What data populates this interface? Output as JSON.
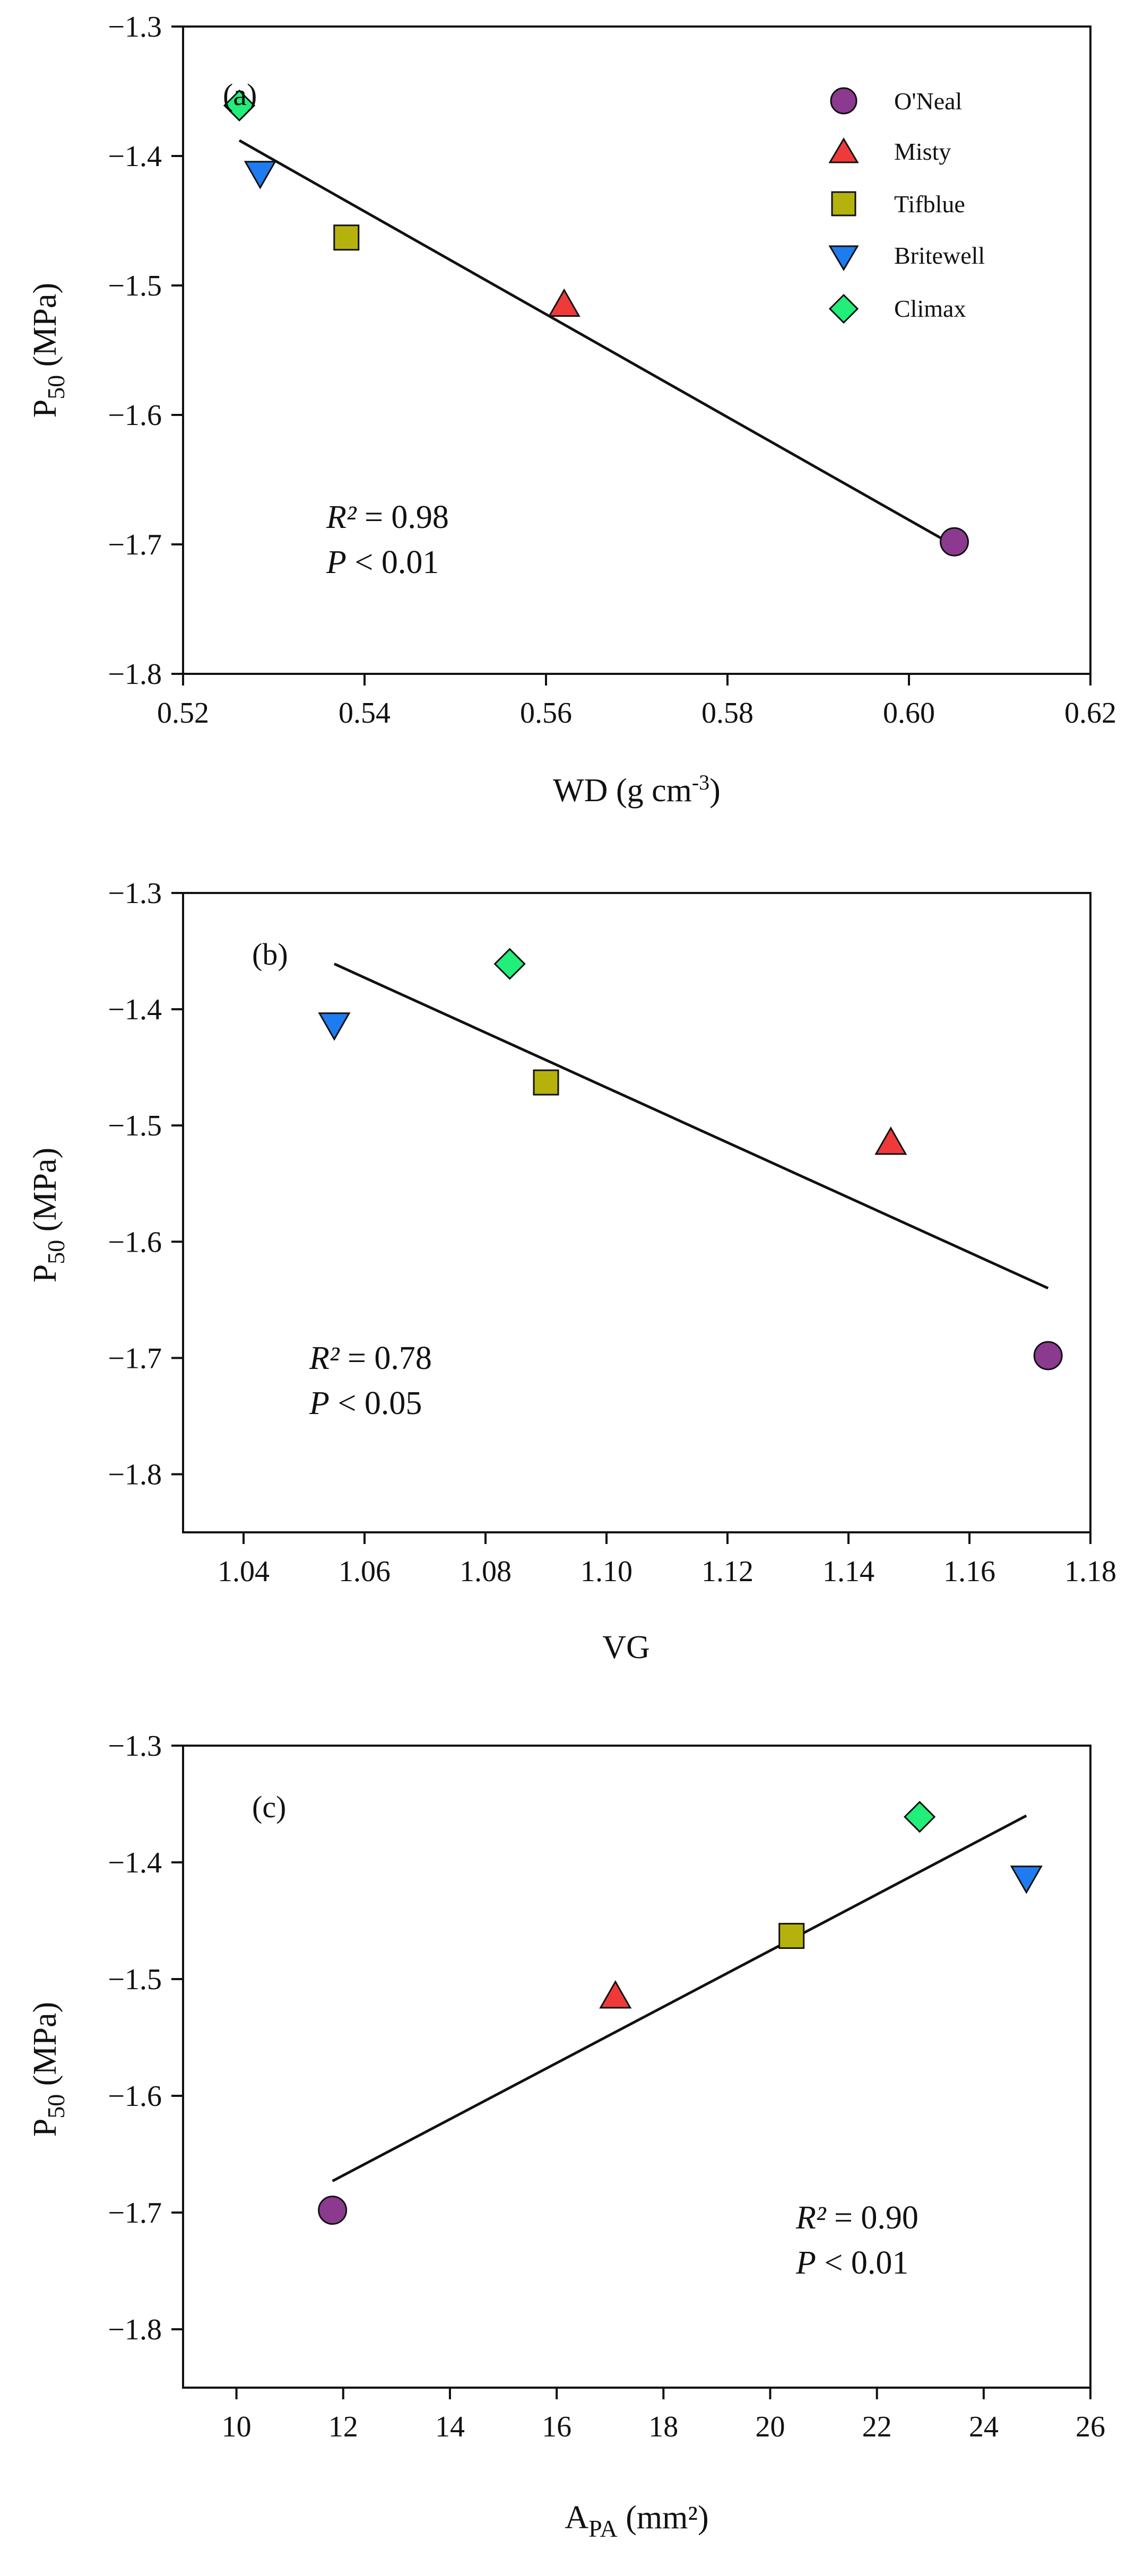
{
  "chart_data": [
    {
      "type": "scatter",
      "panel_label": "(a)",
      "xlabel": "WD (g cm-3)",
      "xlabel_main": "WD (g cm",
      "xlabel_sup": "-3",
      "xlabel_end": ")",
      "ylabel": "P50 (MPa)",
      "ylabel_main": "P",
      "ylabel_sub": "50",
      "ylabel_end": " (MPa)",
      "xlim": [
        0.52,
        0.62
      ],
      "ylim": [
        -1.8,
        -1.3
      ],
      "xticks": [
        0.52,
        0.54,
        0.56,
        0.58,
        0.6,
        0.62
      ],
      "xtick_labels": [
        "0.52",
        "0.54",
        "0.56",
        "0.58",
        "0.60",
        "0.62"
      ],
      "yticks": [
        -1.3,
        -1.4,
        -1.5,
        -1.6,
        -1.7,
        -1.8
      ],
      "ytick_labels": [
        "−1.3",
        "−1.4",
        "−1.5",
        "−1.6",
        "−1.7",
        "−1.8"
      ],
      "points": [
        {
          "cultivar": "O'Neal",
          "x": 0.605,
          "y": -1.698
        },
        {
          "cultivar": "Misty",
          "x": 0.562,
          "y": -1.515
        },
        {
          "cultivar": "Tifblue",
          "x": 0.538,
          "y": -1.463
        },
        {
          "cultivar": "Britewell",
          "x": 0.5285,
          "y": -1.413
        },
        {
          "cultivar": "Climax",
          "x": 0.5262,
          "y": -1.361
        }
      ],
      "fit_line": {
        "x": [
          0.5262,
          0.605
        ],
        "y": [
          -1.388,
          -1.701
        ]
      },
      "r2_label": "R²",
      "r2_value": " = 0.98",
      "p_label": "P",
      "p_value": " < 0.01",
      "stat_position": "bottom-left",
      "legend_position": "top-right"
    },
    {
      "type": "scatter",
      "panel_label": "(b)",
      "xlabel": "VG",
      "ylabel": "P50 (MPa)",
      "ylabel_main": "P",
      "ylabel_sub": "50",
      "ylabel_end": " (MPa)",
      "xlim": [
        1.03,
        1.18
      ],
      "ylim": [
        -1.85,
        -1.3
      ],
      "xticks": [
        1.04,
        1.06,
        1.08,
        1.1,
        1.12,
        1.14,
        1.16,
        1.18
      ],
      "xtick_labels": [
        "1.04",
        "1.06",
        "1.08",
        "1.10",
        "1.12",
        "1.14",
        "1.16",
        "1.18"
      ],
      "yticks": [
        -1.3,
        -1.4,
        -1.5,
        -1.6,
        -1.7,
        -1.8
      ],
      "ytick_labels": [
        "−1.3",
        "−1.4",
        "−1.5",
        "−1.6",
        "−1.7",
        "−1.8"
      ],
      "points": [
        {
          "cultivar": "O'Neal",
          "x": 1.173,
          "y": -1.698
        },
        {
          "cultivar": "Misty",
          "x": 1.147,
          "y": -1.515
        },
        {
          "cultivar": "Tifblue",
          "x": 1.09,
          "y": -1.463
        },
        {
          "cultivar": "Britewell",
          "x": 1.055,
          "y": -1.413
        },
        {
          "cultivar": "Climax",
          "x": 1.084,
          "y": -1.361
        }
      ],
      "fit_line": {
        "x": [
          1.055,
          1.173
        ],
        "y": [
          -1.361,
          -1.64
        ]
      },
      "r2_label": "R²",
      "r2_value": " = 0.78",
      "p_label": "P",
      "p_value": " < 0.05",
      "stat_position": "bottom-left"
    },
    {
      "type": "scatter",
      "panel_label": "(c)",
      "xlabel": "APA (mm²)",
      "xlabel_main": "A",
      "xlabel_sub": "PA",
      "xlabel_end": " (mm²)",
      "ylabel": "P50 (MPa)",
      "ylabel_main": "P",
      "ylabel_sub": "50",
      "ylabel_end": " (MPa)",
      "xlim": [
        9,
        26
      ],
      "ylim": [
        -1.85,
        -1.3
      ],
      "xticks": [
        10,
        12,
        14,
        16,
        18,
        20,
        22,
        24,
        26
      ],
      "xtick_labels": [
        "10",
        "12",
        "14",
        "16",
        "18",
        "20",
        "22",
        "24",
        "26"
      ],
      "yticks": [
        -1.3,
        -1.4,
        -1.5,
        -1.6,
        -1.7,
        -1.8
      ],
      "ytick_labels": [
        "−1.3",
        "−1.4",
        "−1.5",
        "−1.6",
        "−1.7",
        "−1.8"
      ],
      "points": [
        {
          "cultivar": "O'Neal",
          "x": 11.8,
          "y": -1.698
        },
        {
          "cultivar": "Misty",
          "x": 17.1,
          "y": -1.515
        },
        {
          "cultivar": "Tifblue",
          "x": 20.4,
          "y": -1.463
        },
        {
          "cultivar": "Britewell",
          "x": 24.8,
          "y": -1.413
        },
        {
          "cultivar": "Climax",
          "x": 22.8,
          "y": -1.361
        }
      ],
      "fit_line": {
        "x": [
          11.8,
          24.8
        ],
        "y": [
          -1.673,
          -1.36
        ]
      },
      "r2_label": "R²",
      "r2_value": " = 0.90",
      "p_label": "P",
      "p_value": " < 0.01",
      "stat_position": "bottom-right"
    }
  ],
  "legend": [
    {
      "name": "O'Neal",
      "marker": "circle",
      "color": "#8b3a8f"
    },
    {
      "name": "Misty",
      "marker": "triangle-up",
      "color": "#f03a3a"
    },
    {
      "name": "Tifblue",
      "marker": "square",
      "color": "#b5b20e"
    },
    {
      "name": "Britewell",
      "marker": "triangle-down",
      "color": "#1e7cf0"
    },
    {
      "name": "Climax",
      "marker": "diamond",
      "color": "#22ee7a"
    }
  ]
}
